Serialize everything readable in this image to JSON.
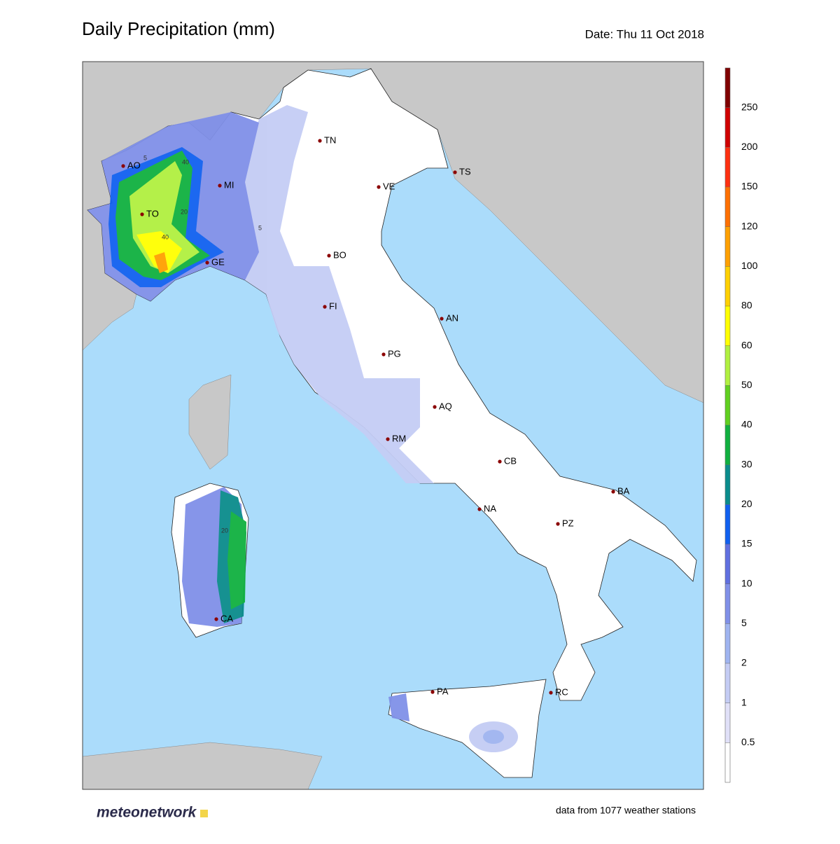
{
  "header": {
    "title": "Daily Precipitation (mm)",
    "date": "Date: Thu 11 Oct 2018"
  },
  "cities": [
    "AO",
    "MI",
    "TO",
    "GE",
    "TN",
    "VE",
    "TS",
    "BO",
    "FI",
    "AN",
    "PG",
    "AQ",
    "RM",
    "CB",
    "BA",
    "NA",
    "PZ",
    "PA",
    "RC",
    "CA"
  ],
  "contour_labels": [
    "5",
    "40",
    "20",
    "40",
    "5",
    "20"
  ],
  "colorbar": {
    "ticks": [
      0.5,
      1,
      2,
      5,
      10,
      15,
      20,
      30,
      40,
      50,
      60,
      80,
      100,
      120,
      150,
      200,
      250
    ],
    "colors": [
      "#ffffff",
      "#e0e0f8",
      "#c4ccf4",
      "#9fb4f0",
      "#8090e8",
      "#6070e0",
      "#1060f0",
      "#0a8c8c",
      "#10b040",
      "#60d020",
      "#b0f040",
      "#ffff00",
      "#ffd000",
      "#ffa000",
      "#ff7000",
      "#ff3010",
      "#d00000",
      "#800000"
    ]
  },
  "footer": {
    "logo": "meteonetwork",
    "source": "data from 1077 weather stations"
  }
}
